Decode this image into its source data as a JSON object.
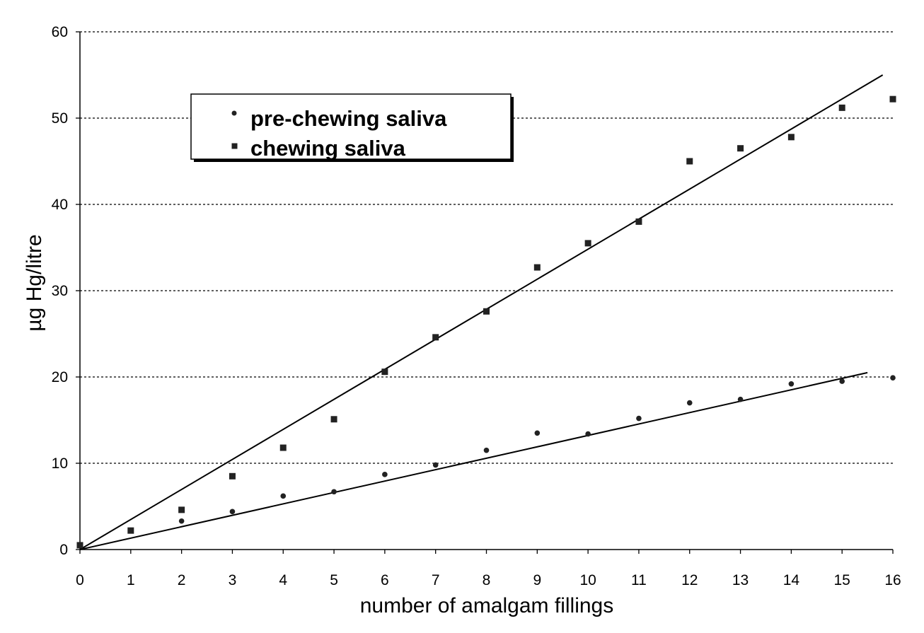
{
  "chart_data": {
    "type": "scatter",
    "xlabel": "number of amalgam fillings",
    "ylabel": "µg Hg/litre",
    "xlim": [
      0,
      16
    ],
    "ylim": [
      0,
      60
    ],
    "x_ticks": [
      0,
      1,
      2,
      3,
      4,
      5,
      6,
      7,
      8,
      9,
      10,
      11,
      12,
      13,
      14,
      15,
      16
    ],
    "y_ticks": [
      0,
      10,
      20,
      30,
      40,
      50,
      60
    ],
    "grid": "horizontal dotted",
    "legend_position": "top-left",
    "series": [
      {
        "name": "pre-chewing saliva",
        "marker": "circle",
        "points": [
          [
            0,
            0.5
          ],
          [
            1,
            2.2
          ],
          [
            2,
            3.3
          ],
          [
            3,
            4.4
          ],
          [
            4,
            6.2
          ],
          [
            5,
            6.7
          ],
          [
            6,
            8.7
          ],
          [
            7,
            9.8
          ],
          [
            8,
            11.5
          ],
          [
            9,
            13.5
          ],
          [
            10,
            13.4
          ],
          [
            11,
            15.2
          ],
          [
            12,
            17.0
          ],
          [
            13,
            17.4
          ],
          [
            14,
            19.2
          ],
          [
            15,
            19.5
          ],
          [
            16,
            19.9
          ]
        ],
        "trendline": {
          "x": [
            0,
            15.5
          ],
          "y": [
            0,
            20.5
          ]
        }
      },
      {
        "name": "chewing saliva",
        "marker": "square",
        "points": [
          [
            0,
            0.5
          ],
          [
            1,
            2.2
          ],
          [
            2,
            4.6
          ],
          [
            3,
            8.5
          ],
          [
            4,
            11.8
          ],
          [
            5,
            15.1
          ],
          [
            6,
            20.6
          ],
          [
            7,
            24.6
          ],
          [
            8,
            27.6
          ],
          [
            9,
            32.7
          ],
          [
            10,
            35.5
          ],
          [
            11,
            38.0
          ],
          [
            12,
            45.0
          ],
          [
            13,
            46.5
          ],
          [
            14,
            47.8
          ],
          [
            15,
            51.2
          ],
          [
            16,
            52.2
          ]
        ],
        "trendline": {
          "x": [
            0,
            15.8
          ],
          "y": [
            0,
            55.0
          ]
        }
      }
    ]
  }
}
